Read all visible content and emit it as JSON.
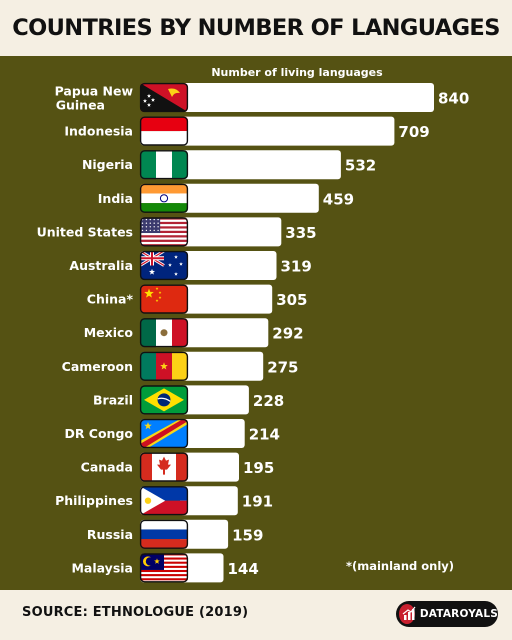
{
  "title": "COUNTRIES BY NUMBER OF LANGUAGES",
  "footer": {
    "source": "SOURCE: ETHNOLOGUE (2019)",
    "brand": "DATAROYALS"
  },
  "colors": {
    "panel": "#555213",
    "background": "#f5efe3",
    "bar": "#ffffff",
    "text": "#ffffff",
    "brand_red": "#c8202f"
  },
  "chart_data": {
    "type": "bar",
    "orientation": "horizontal",
    "title": "COUNTRIES BY NUMBER OF LANGUAGES",
    "value_label": "Number of living languages",
    "note": "*(mainland only)",
    "categories": [
      "Papua New Guinea",
      "Indonesia",
      "Nigeria",
      "India",
      "United States",
      "Australia",
      "China*",
      "Mexico",
      "Cameroon",
      "Brazil",
      "DR Congo",
      "Canada",
      "Philippines",
      "Russia",
      "Malaysia"
    ],
    "values": [
      840,
      709,
      532,
      459,
      335,
      319,
      305,
      292,
      275,
      228,
      214,
      195,
      191,
      159,
      144
    ],
    "flags": [
      "papua-new-guinea-flag",
      "indonesia-flag",
      "nigeria-flag",
      "india-flag",
      "united-states-flag",
      "australia-flag",
      "china-flag",
      "mexico-flag",
      "cameroon-flag",
      "brazil-flag",
      "dr-congo-flag",
      "canada-flag",
      "philippines-flag",
      "russia-flag",
      "malaysia-flag"
    ],
    "data_labels": true,
    "grid": false,
    "legend": "none"
  }
}
